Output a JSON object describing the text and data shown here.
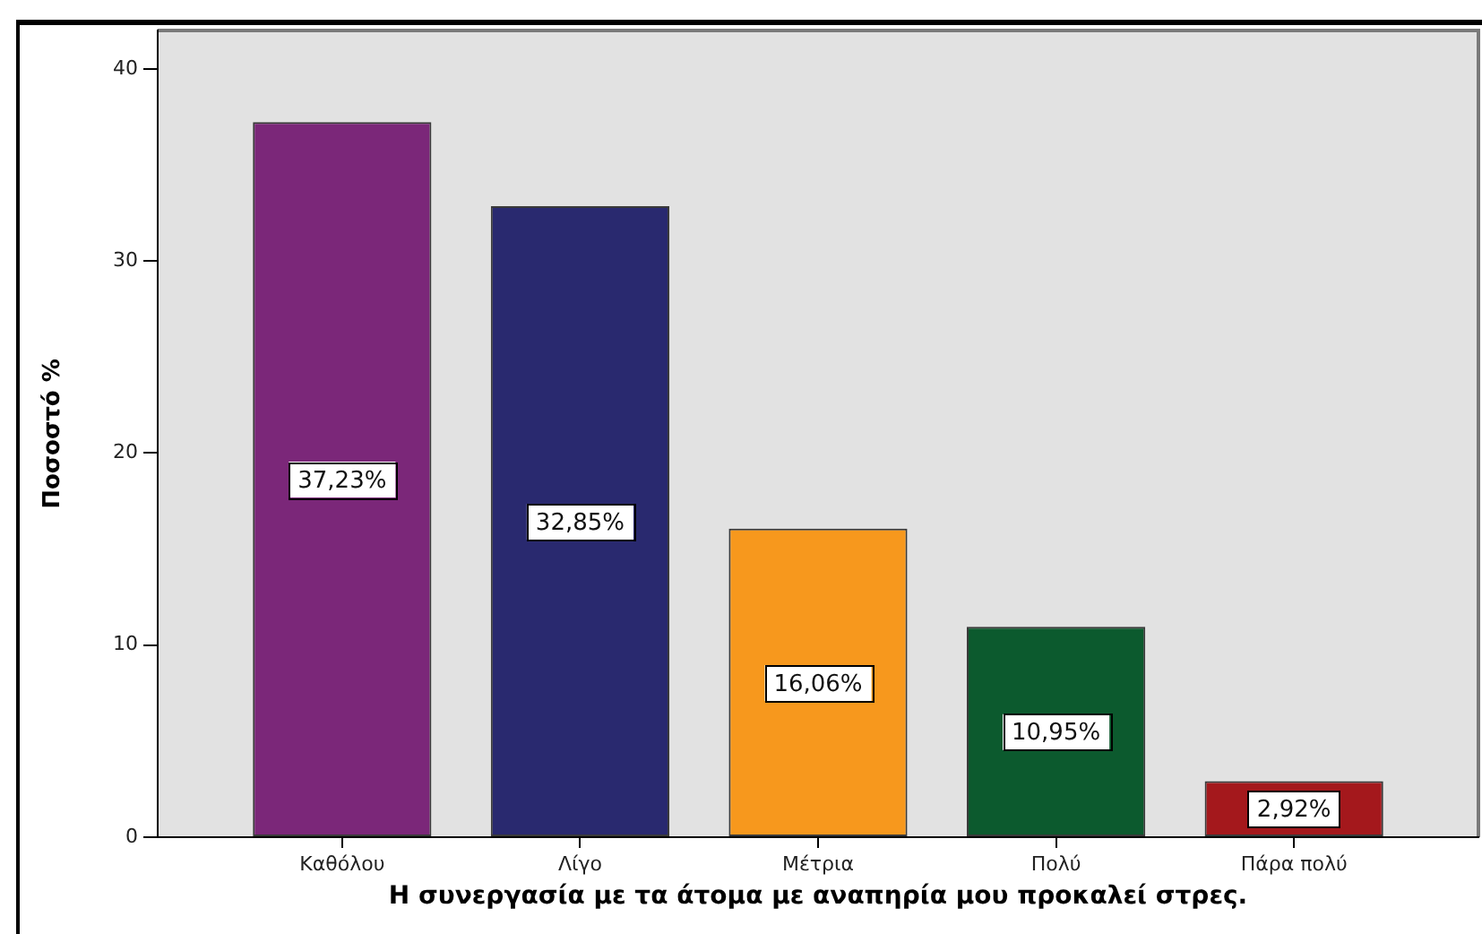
{
  "chart_data": {
    "type": "bar",
    "xlabel": "Η συνεργασία με τα άτομα με αναπηρία μου προκαλεί στρες.",
    "ylabel": "Ποσοστό %",
    "categories": [
      "Καθόλου",
      "Λίγο",
      "Μέτρια",
      "Πολύ",
      "Πάρα πολύ"
    ],
    "values": [
      37.23,
      32.85,
      16.06,
      10.95,
      2.92
    ],
    "colors": [
      "#7b2779",
      "#29296f",
      "#f7981d",
      "#0c5a2e",
      "#a4181c"
    ],
    "value_labels": [
      "37,23%",
      "32,85%",
      "16,06%",
      "10,95%",
      "2,92%"
    ],
    "ylim": [
      0,
      42
    ],
    "yticks": [
      0,
      10,
      20,
      30,
      40
    ],
    "grid": false,
    "legend": false
  }
}
